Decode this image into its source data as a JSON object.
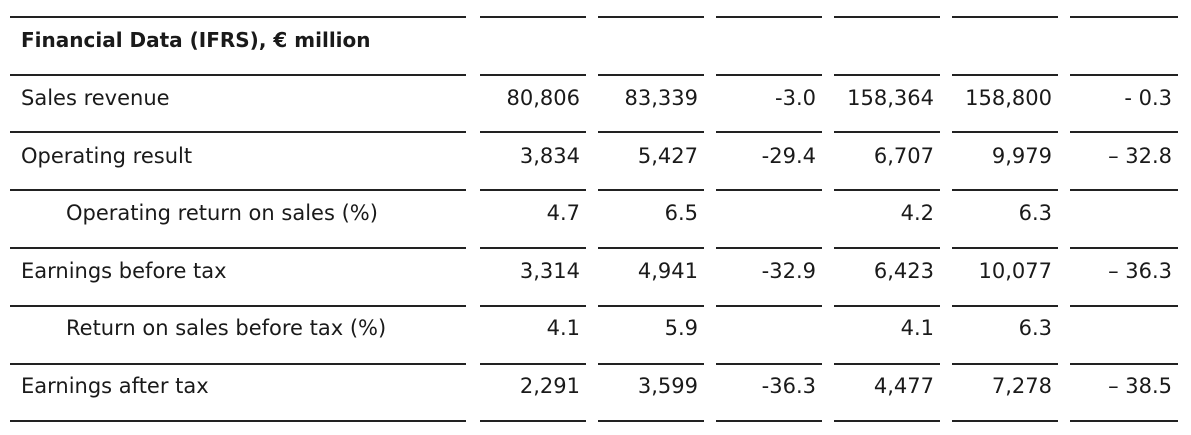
{
  "table": {
    "title": "Financial Data (IFRS), € million",
    "rows": [
      {
        "label": "Sales revenue",
        "indent": false,
        "values": [
          "80,806",
          "83,339",
          "-3.0",
          "158,364",
          "158,800",
          "- 0.3"
        ]
      },
      {
        "label": "Operating result",
        "indent": false,
        "values": [
          "3,834",
          "5,427",
          "-29.4",
          "6,707",
          "9,979",
          "– 32.8"
        ]
      },
      {
        "label": "Operating return on sales (%)",
        "indent": true,
        "values": [
          "4.7",
          "6.5",
          "",
          "4.2",
          "6.3",
          ""
        ]
      },
      {
        "label": "Earnings before tax",
        "indent": false,
        "values": [
          "3,314",
          "4,941",
          "-32.9",
          "6,423",
          "10,077",
          "– 36.3"
        ]
      },
      {
        "label": "Return on sales before tax (%)",
        "indent": true,
        "values": [
          "4.1",
          "5.9",
          "",
          "4.1",
          "6.3",
          ""
        ]
      },
      {
        "label": "Earnings after tax",
        "indent": false,
        "values": [
          "2,291",
          "3,599",
          "-36.3",
          "4,477",
          "7,278",
          "– 38.5"
        ]
      }
    ]
  }
}
